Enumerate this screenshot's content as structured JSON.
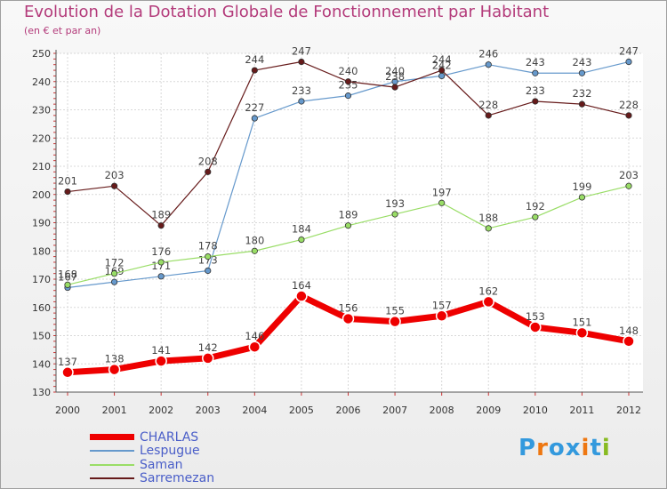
{
  "chart_data": {
    "type": "line",
    "title": "Evolution de la Dotation Globale de Fonctionnement par Habitant",
    "subtitle": "(en € et par an)",
    "xlabel": "",
    "ylabel": "",
    "ylim": [
      130,
      250
    ],
    "yticks": [
      130,
      140,
      150,
      160,
      170,
      180,
      190,
      200,
      210,
      220,
      230,
      240,
      250
    ],
    "categories": [
      "2000",
      "2001",
      "2002",
      "2003",
      "2004",
      "2005",
      "2006",
      "2007",
      "2008",
      "2009",
      "2010",
      "2011",
      "2012"
    ],
    "grid": true,
    "legend_position": "bottom-left",
    "series": [
      {
        "name": "CHARLAS",
        "color": "#ee0000",
        "width": 7,
        "values": [
          137,
          138,
          141,
          142,
          146,
          164,
          156,
          155,
          157,
          162,
          153,
          151,
          148
        ]
      },
      {
        "name": "Lespugue",
        "color": "#6699cc",
        "width": 1.2,
        "values": [
          167,
          169,
          171,
          173,
          227,
          233,
          235,
          240,
          242,
          246,
          243,
          243,
          247
        ]
      },
      {
        "name": "Saman",
        "color": "#99dd66",
        "width": 1.2,
        "values": [
          168,
          172,
          176,
          178,
          180,
          184,
          189,
          193,
          197,
          188,
          192,
          199,
          203
        ]
      },
      {
        "name": "Sarremezan",
        "color": "#661a1a",
        "width": 1.2,
        "values": [
          201,
          203,
          189,
          208,
          244,
          247,
          240,
          238,
          244,
          228,
          233,
          232,
          228
        ]
      }
    ]
  },
  "logo": {
    "text": "Proxiti",
    "letters": [
      "P",
      "r",
      "o",
      "x",
      "i",
      "t",
      "i"
    ],
    "colors": [
      "#3399dd",
      "#ee7711",
      "#3399dd",
      "#3399dd",
      "#ee7711",
      "#3399dd",
      "#88bb22"
    ]
  }
}
